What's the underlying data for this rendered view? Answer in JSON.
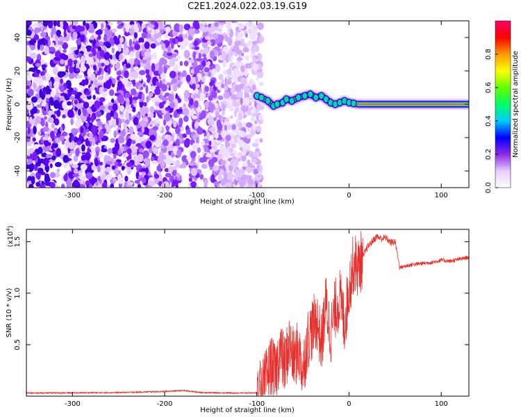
{
  "title": "C2E1.2024.022.03.19.G19",
  "chart_data": [
    {
      "type": "heatmap",
      "xlabel": "Height of straight line (km)",
      "ylabel": "Frequency (Hz)",
      "xlim": [
        -350,
        130
      ],
      "ylim": [
        -50,
        50
      ],
      "x_ticks": [
        -300,
        -200,
        -100,
        0,
        100
      ],
      "y_ticks": [
        -40,
        -20,
        0,
        20,
        40
      ],
      "x_tick_labels": [
        "-300",
        "-200",
        "-100",
        "0",
        "100"
      ],
      "y_tick_labels": [
        "-40",
        "-20",
        "0",
        "20",
        "40"
      ],
      "noise_region_x": [
        -350,
        -95
      ],
      "gap_band_x": [
        -182,
        -172
      ],
      "ridge": [
        {
          "x": -100,
          "y": 5
        },
        {
          "x": -95,
          "y": 4
        },
        {
          "x": -88,
          "y": 2
        },
        {
          "x": -82,
          "y": -1
        },
        {
          "x": -78,
          "y": 0
        },
        {
          "x": -72,
          "y": 1
        },
        {
          "x": -68,
          "y": 3
        },
        {
          "x": -62,
          "y": 2
        },
        {
          "x": -55,
          "y": 4
        },
        {
          "x": -48,
          "y": 5
        },
        {
          "x": -42,
          "y": 6
        },
        {
          "x": -36,
          "y": 4
        },
        {
          "x": -30,
          "y": 5
        },
        {
          "x": -25,
          "y": 3
        },
        {
          "x": -20,
          "y": 1
        },
        {
          "x": -15,
          "y": 0
        },
        {
          "x": -10,
          "y": 1
        },
        {
          "x": -5,
          "y": 2
        },
        {
          "x": 0,
          "y": 1
        },
        {
          "x": 5,
          "y": 0.5
        },
        {
          "x": 10,
          "y": 0
        },
        {
          "x": 50,
          "y": 0
        },
        {
          "x": 90,
          "y": 0
        },
        {
          "x": 130,
          "y": 0
        }
      ],
      "colorbar": {
        "label": "Normalized spectral amplitude",
        "range": [
          0.0,
          1.0
        ],
        "ticks": [
          0.0,
          0.2,
          0.4,
          0.6,
          0.8
        ],
        "tick_labels": [
          "0.0",
          "0.2",
          "0.4",
          "0.6",
          "0.8"
        ],
        "colors": [
          "#ffffff",
          "#e6ccff",
          "#8a2be2",
          "#0000ff",
          "#00ccff",
          "#00ff66",
          "#66ff00",
          "#ffff00",
          "#ff9900",
          "#ff0000",
          "#ff0066"
        ]
      }
    },
    {
      "type": "line",
      "xlabel": "Height of straight line (km)",
      "ylabel": "SNR (10 * v/v)",
      "y_multiplier_label": "(x10",
      "y_multiplier_exp": "4",
      "y_multiplier_close": ")",
      "xlim": [
        -350,
        130
      ],
      "ylim": [
        0,
        16200
      ],
      "x_ticks": [
        -300,
        -200,
        -100,
        0,
        100
      ],
      "x_tick_labels": [
        "-300",
        "-200",
        "-100",
        "0",
        "100"
      ],
      "y_ticks": [
        5000,
        10000,
        15000
      ],
      "y_tick_labels": [
        "0.5",
        "1.0",
        "1.5"
      ],
      "color": "#e8302c",
      "series": [
        {
          "points": [
            [
              -350,
              300
            ],
            [
              -300,
              320
            ],
            [
              -250,
              350
            ],
            [
              -200,
              450
            ],
            [
              -180,
              550
            ],
            [
              -160,
              350
            ],
            [
              -120,
              300
            ],
            [
              -100,
              320
            ],
            [
              -95,
              500
            ],
            [
              -90,
              1500
            ],
            [
              -85,
              3000
            ],
            [
              -80,
              2000
            ],
            [
              -75,
              4500
            ],
            [
              -70,
              3000
            ],
            [
              -65,
              5000
            ],
            [
              -60,
              3500
            ],
            [
              -55,
              4500
            ],
            [
              -50,
              2500
            ],
            [
              -45,
              5500
            ],
            [
              -40,
              6500
            ],
            [
              -35,
              7500
            ],
            [
              -30,
              5000
            ],
            [
              -25,
              9000
            ],
            [
              -20,
              6000
            ],
            [
              -15,
              8500
            ],
            [
              -10,
              9500
            ],
            [
              -5,
              7000
            ],
            [
              0,
              10500
            ],
            [
              5,
              13000
            ],
            [
              10,
              12500
            ],
            [
              15,
              13500
            ],
            [
              20,
              14500
            ],
            [
              25,
              15000
            ],
            [
              30,
              15500
            ],
            [
              35,
              15300
            ],
            [
              40,
              15400
            ],
            [
              45,
              14900
            ],
            [
              50,
              15000
            ],
            [
              52,
              14000
            ],
            [
              55,
              12500
            ],
            [
              60,
              12600
            ],
            [
              70,
              12800
            ],
            [
              80,
              12900
            ],
            [
              90,
              13000
            ],
            [
              100,
              13200
            ],
            [
              110,
              13100
            ],
            [
              120,
              13300
            ],
            [
              130,
              13500
            ]
          ]
        }
      ]
    }
  ]
}
